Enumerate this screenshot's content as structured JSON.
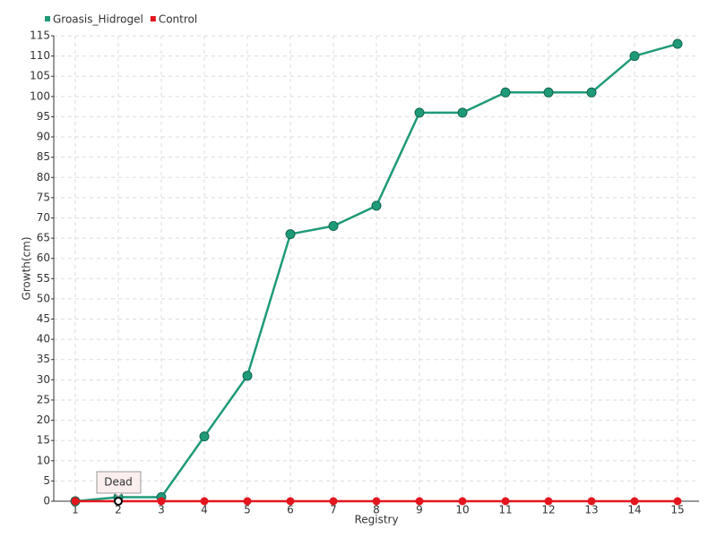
{
  "chart_data": {
    "type": "line",
    "x_label": "Registry",
    "y_label": "Growth(cm)",
    "categories": [
      "1",
      "2",
      "3",
      "4",
      "5",
      "6",
      "7",
      "8",
      "9",
      "10",
      "11",
      "12",
      "13",
      "14",
      "15"
    ],
    "series": [
      {
        "name": "Groasis_Hidrogel",
        "color": "#1f9a78",
        "values": [
          0,
          1,
          1,
          16,
          31,
          66,
          68,
          73,
          96,
          96,
          101,
          101,
          101,
          110,
          113
        ]
      },
      {
        "name": "Control",
        "color": "#e3161e",
        "values": [
          0,
          0,
          0,
          0,
          0,
          0,
          0,
          0,
          0,
          0,
          0,
          0,
          0,
          0,
          0
        ]
      }
    ],
    "annotation": "Dead",
    "ylim": [
      0,
      115
    ],
    "yticks": [
      0,
      5,
      10,
      15,
      20,
      25,
      30,
      35,
      40,
      45,
      50,
      55,
      60,
      65,
      70,
      75,
      80,
      85,
      90,
      95,
      100,
      105,
      110,
      115
    ],
    "grid": true,
    "legend": "top-left"
  }
}
